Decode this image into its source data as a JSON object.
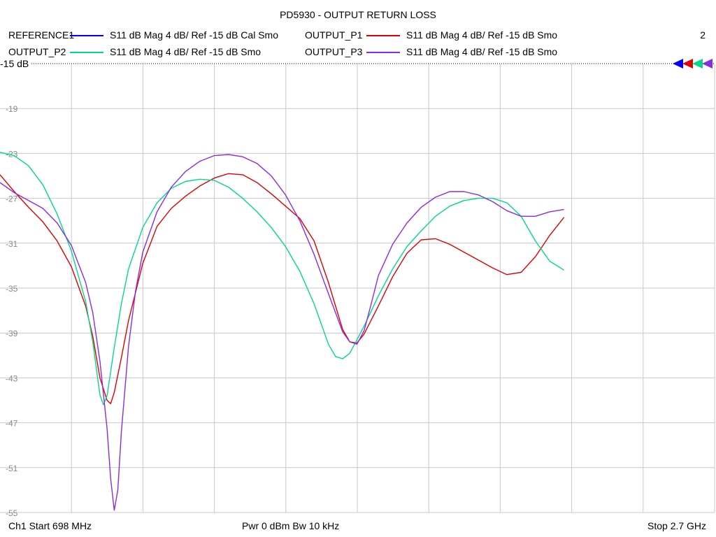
{
  "chart_data": {
    "type": "line",
    "title": "PD5930 - OUTPUT RETURN LOSS",
    "xlabel": "",
    "ylabel": "",
    "x_start": 698,
    "x_stop": 2700,
    "x_unit": "MHz",
    "ylim": [
      -55,
      -15
    ],
    "y_ticks": [
      -15,
      -19,
      -23,
      -27,
      -31,
      -35,
      -39,
      -43,
      -47,
      -51,
      -55
    ],
    "y_tick_labels": [
      "-15",
      "-19",
      "-23",
      "-27",
      "-31",
      "-35",
      "-39",
      "-43",
      "-47",
      "-51",
      "-55"
    ],
    "x_gridlines": 10,
    "grid": true,
    "reference_label": "-15 dB",
    "marker_count_label": "2",
    "series": [
      {
        "name": "REFERENCE1",
        "desc": "S11  dB Mag  4 dB/ Ref -15 dB  Cal Smo",
        "color": "#0000ff",
        "points": []
      },
      {
        "name": "OUTPUT_P1",
        "desc": "S11  dB Mag  4 dB/ Ref -15 dB  Smo",
        "color": "#e00000",
        "points": [
          [
            698,
            -24.9
          ],
          [
            738,
            -26.4
          ],
          [
            778,
            -27.8
          ],
          [
            818,
            -29.1
          ],
          [
            858,
            -30.8
          ],
          [
            898,
            -33.1
          ],
          [
            938,
            -36.6
          ],
          [
            958,
            -39.3
          ],
          [
            978,
            -43.0
          ],
          [
            998,
            -45.0
          ],
          [
            1008,
            -45.3
          ],
          [
            1018,
            -44.3
          ],
          [
            1038,
            -41.2
          ],
          [
            1058,
            -37.9
          ],
          [
            1098,
            -32.8
          ],
          [
            1138,
            -29.5
          ],
          [
            1178,
            -27.9
          ],
          [
            1218,
            -26.8
          ],
          [
            1258,
            -25.9
          ],
          [
            1298,
            -25.2
          ],
          [
            1338,
            -24.8
          ],
          [
            1378,
            -24.9
          ],
          [
            1418,
            -25.6
          ],
          [
            1458,
            -26.6
          ],
          [
            1498,
            -27.7
          ],
          [
            1538,
            -28.8
          ],
          [
            1578,
            -30.8
          ],
          [
            1618,
            -34.5
          ],
          [
            1658,
            -38.7
          ],
          [
            1678,
            -39.8
          ],
          [
            1698,
            -39.9
          ],
          [
            1718,
            -39.1
          ],
          [
            1758,
            -36.6
          ],
          [
            1798,
            -34.0
          ],
          [
            1838,
            -31.9
          ],
          [
            1878,
            -30.7
          ],
          [
            1918,
            -30.6
          ],
          [
            1958,
            -31.1
          ],
          [
            1998,
            -31.8
          ],
          [
            2038,
            -32.5
          ],
          [
            2078,
            -33.2
          ],
          [
            2118,
            -33.8
          ],
          [
            2158,
            -33.6
          ],
          [
            2198,
            -32.2
          ],
          [
            2238,
            -30.3
          ],
          [
            2278,
            -28.7
          ]
        ]
      },
      {
        "name": "OUTPUT_P2",
        "desc": "S11  dB Mag  4 dB/ Ref -15 dB  Smo",
        "color": "#00d890",
        "points": [
          [
            698,
            -22.9
          ],
          [
            738,
            -23.2
          ],
          [
            778,
            -24.1
          ],
          [
            818,
            -25.8
          ],
          [
            858,
            -28.4
          ],
          [
            898,
            -31.7
          ],
          [
            938,
            -36.2
          ],
          [
            958,
            -39.8
          ],
          [
            978,
            -44.5
          ],
          [
            988,
            -45.4
          ],
          [
            998,
            -44.6
          ],
          [
            1018,
            -40.3
          ],
          [
            1038,
            -36.4
          ],
          [
            1058,
            -33.3
          ],
          [
            1098,
            -29.6
          ],
          [
            1138,
            -27.4
          ],
          [
            1178,
            -26.1
          ],
          [
            1218,
            -25.5
          ],
          [
            1258,
            -25.3
          ],
          [
            1298,
            -25.4
          ],
          [
            1338,
            -26.0
          ],
          [
            1378,
            -27.0
          ],
          [
            1418,
            -28.2
          ],
          [
            1458,
            -29.6
          ],
          [
            1498,
            -31.3
          ],
          [
            1538,
            -33.5
          ],
          [
            1578,
            -36.4
          ],
          [
            1618,
            -40.0
          ],
          [
            1638,
            -41.1
          ],
          [
            1658,
            -41.3
          ],
          [
            1678,
            -40.8
          ],
          [
            1718,
            -38.4
          ],
          [
            1758,
            -35.7
          ],
          [
            1798,
            -33.3
          ],
          [
            1838,
            -31.3
          ],
          [
            1878,
            -29.9
          ],
          [
            1918,
            -28.6
          ],
          [
            1958,
            -27.7
          ],
          [
            1998,
            -27.2
          ],
          [
            2038,
            -27.0
          ],
          [
            2078,
            -27.0
          ],
          [
            2118,
            -27.4
          ],
          [
            2158,
            -28.6
          ],
          [
            2198,
            -30.8
          ],
          [
            2238,
            -32.6
          ],
          [
            2278,
            -33.4
          ]
        ]
      },
      {
        "name": "OUTPUT_P3",
        "desc": "S11  dB Mag  4 dB/ Ref -15 dB  Smo",
        "color": "#8a2be2",
        "points": [
          [
            698,
            -25.6
          ],
          [
            738,
            -26.5
          ],
          [
            778,
            -27.2
          ],
          [
            818,
            -27.9
          ],
          [
            858,
            -29.2
          ],
          [
            898,
            -31.2
          ],
          [
            938,
            -34.5
          ],
          [
            958,
            -37.2
          ],
          [
            978,
            -41.5
          ],
          [
            998,
            -47.5
          ],
          [
            1008,
            -52.0
          ],
          [
            1018,
            -54.8
          ],
          [
            1028,
            -53.0
          ],
          [
            1038,
            -47.8
          ],
          [
            1058,
            -40.2
          ],
          [
            1078,
            -35.2
          ],
          [
            1098,
            -31.8
          ],
          [
            1138,
            -28.2
          ],
          [
            1178,
            -26.0
          ],
          [
            1218,
            -24.6
          ],
          [
            1258,
            -23.7
          ],
          [
            1298,
            -23.2
          ],
          [
            1338,
            -23.1
          ],
          [
            1378,
            -23.3
          ],
          [
            1418,
            -23.9
          ],
          [
            1458,
            -25.0
          ],
          [
            1498,
            -26.7
          ],
          [
            1538,
            -29.0
          ],
          [
            1578,
            -32.0
          ],
          [
            1618,
            -35.5
          ],
          [
            1658,
            -38.9
          ],
          [
            1678,
            -39.8
          ],
          [
            1698,
            -40.0
          ],
          [
            1718,
            -38.8
          ],
          [
            1738,
            -36.4
          ],
          [
            1758,
            -33.9
          ],
          [
            1798,
            -31.1
          ],
          [
            1838,
            -29.2
          ],
          [
            1878,
            -27.8
          ],
          [
            1918,
            -26.9
          ],
          [
            1958,
            -26.4
          ],
          [
            1998,
            -26.4
          ],
          [
            2038,
            -26.7
          ],
          [
            2078,
            -27.3
          ],
          [
            2118,
            -28.1
          ],
          [
            2158,
            -28.6
          ],
          [
            2198,
            -28.6
          ],
          [
            2238,
            -28.2
          ],
          [
            2278,
            -28.0
          ]
        ]
      }
    ]
  },
  "footer": {
    "start": "Ch1  Start  698 MHz",
    "power": "Pwr  0 dBm  Bw  10 kHz",
    "stop": "Stop  2.7 GHz"
  },
  "colors": {
    "grid": "#c8c8c8",
    "reference_line": "#000000"
  }
}
